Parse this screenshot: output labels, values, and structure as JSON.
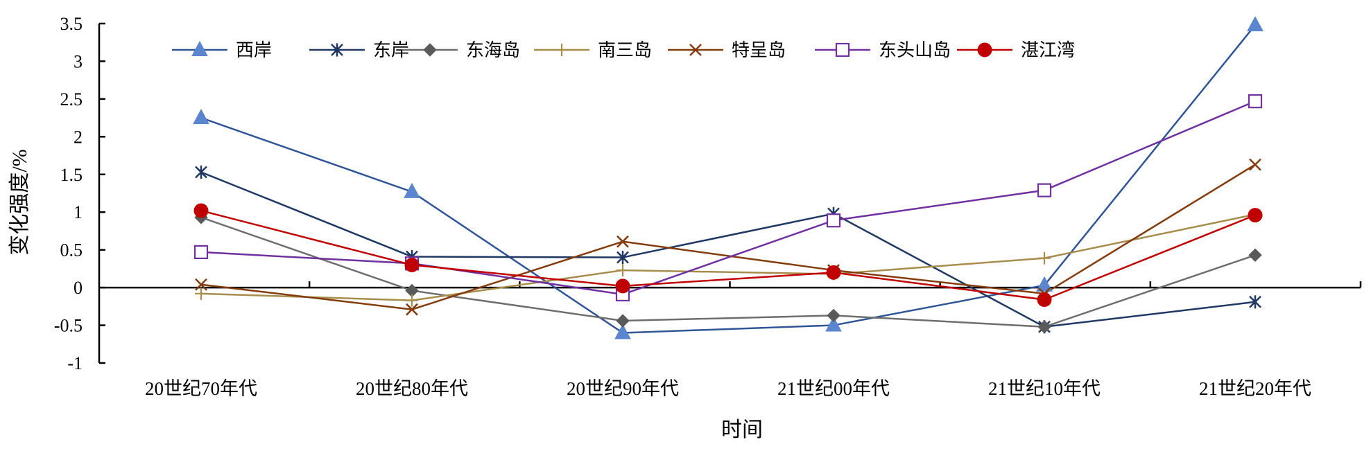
{
  "chart_data": {
    "type": "line",
    "title": "",
    "xlabel": "时间",
    "ylabel": "变化强度/%",
    "ylim": [
      -1,
      3.5
    ],
    "yticks": [
      "-1",
      "-0.5",
      "0",
      "0.5",
      "1",
      "1.5",
      "2",
      "2.5",
      "3",
      "3.5"
    ],
    "categories": [
      "20世纪70年代",
      "20世纪80年代",
      "20世纪90年代",
      "21世纪00年代",
      "21世纪10年代",
      "21世纪20年代"
    ],
    "grid": false,
    "legend": "top",
    "series": [
      {
        "name": "西岸",
        "marker": "triangle",
        "color": "#2f5597",
        "marker_color": "#5b86cf",
        "values": [
          2.25,
          1.27,
          -0.6,
          -0.5,
          0.03,
          3.48
        ]
      },
      {
        "name": "东岸",
        "marker": "asterisk",
        "color": "#1f3864",
        "marker_color": "#1f3864",
        "values": [
          1.53,
          0.41,
          0.4,
          0.98,
          -0.52,
          -0.19
        ]
      },
      {
        "name": "东海岛",
        "marker": "diamond",
        "color": "#6e6e6e",
        "marker_color": "#5a5a5a",
        "values": [
          0.93,
          -0.04,
          -0.44,
          -0.37,
          -0.52,
          0.43
        ]
      },
      {
        "name": "南三岛",
        "marker": "plus",
        "color": "#a68d4c",
        "marker_color": "#a68d4c",
        "values": [
          -0.08,
          -0.17,
          0.23,
          0.18,
          0.39,
          0.97
        ]
      },
      {
        "name": "特呈岛",
        "marker": "x",
        "color": "#843c0c",
        "marker_color": "#843c0c",
        "values": [
          0.04,
          -0.29,
          0.61,
          0.23,
          -0.08,
          1.63
        ]
      },
      {
        "name": "东头山岛",
        "marker": "square",
        "color": "#7030a0",
        "marker_color": "#7030a0",
        "values": [
          0.47,
          0.32,
          -0.09,
          0.89,
          1.29,
          2.47
        ]
      },
      {
        "name": "湛江湾",
        "marker": "circle",
        "color": "#c00000",
        "marker_color": "#c00000",
        "values": [
          1.02,
          0.3,
          0.02,
          0.2,
          -0.16,
          0.96
        ]
      }
    ]
  }
}
